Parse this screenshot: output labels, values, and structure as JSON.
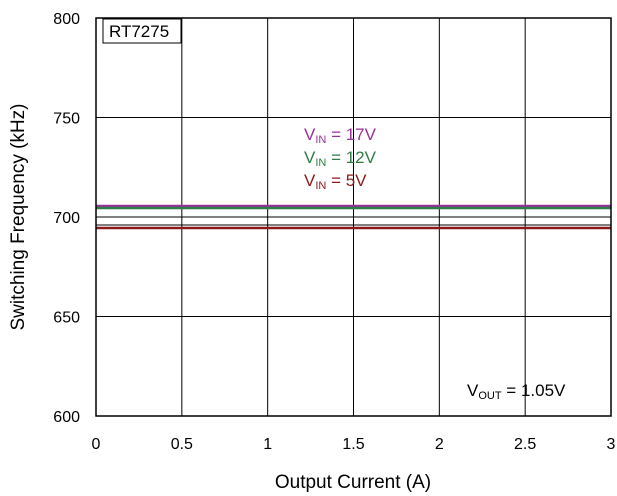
{
  "chart_data": {
    "type": "line",
    "title": "",
    "xlabel": "Output Current (A)",
    "ylabel": "Switching Frequency (kHz)",
    "xlim": [
      0,
      3
    ],
    "ylim": [
      600,
      800
    ],
    "x_ticks": [
      "0",
      "0.5",
      "1",
      "1.5",
      "2",
      "2.5",
      "3"
    ],
    "y_ticks": [
      "600",
      "650",
      "700",
      "750",
      "800"
    ],
    "grid": true,
    "annotations": {
      "part_number": "RT7275",
      "vout_main": "V",
      "vout_sub": "OUT",
      "vout_value": " = 1.05V"
    },
    "series": [
      {
        "name_main": "V",
        "name_sub": "IN",
        "name_value": " = 17V",
        "color": "#9b2f9b",
        "x": [
          0,
          3
        ],
        "y": [
          705.5,
          705.5
        ]
      },
      {
        "name_main": "V",
        "name_sub": "IN",
        "name_value": " = 12V",
        "color": "#2e7d46",
        "x": [
          0,
          3
        ],
        "y": [
          704.5,
          704.5
        ]
      },
      {
        "name_main": "V",
        "name_sub": "IN",
        "name_value": " = 5V",
        "color": "#8b1a1a",
        "x": [
          0,
          3
        ],
        "y": [
          694.5,
          694.5
        ]
      }
    ],
    "reference_lines": [
      {
        "color": "#000000",
        "y": 700
      },
      {
        "color": "#000000",
        "y": 696
      }
    ]
  }
}
